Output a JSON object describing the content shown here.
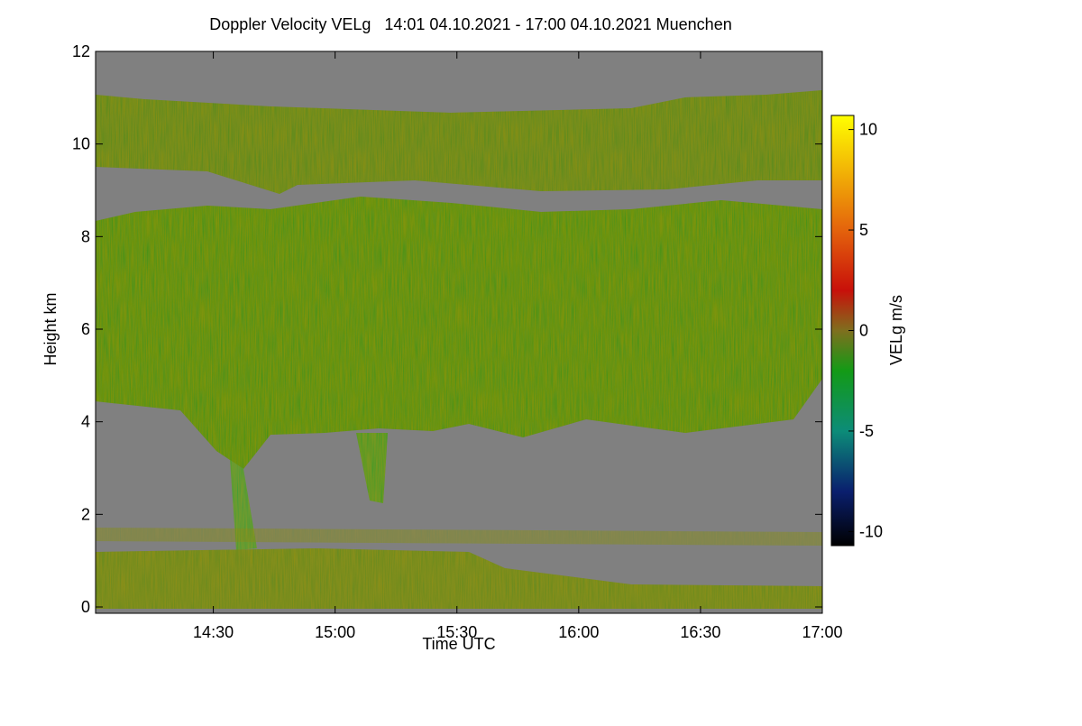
{
  "chart_data": {
    "type": "heatmap",
    "title": "Doppler Velocity VELg   14:01 04.10.2021 - 17:00 04.10.2021 Muenchen",
    "xlabel": "Time UTC",
    "ylabel": "Height km",
    "colorbar_label": "VELg m/s",
    "xlim": [
      14.0167,
      17
    ],
    "xticks": [
      {
        "value": 14.5,
        "label": "14:30"
      },
      {
        "value": 15,
        "label": "15:00"
      },
      {
        "value": 15.5,
        "label": "15:30"
      },
      {
        "value": 16,
        "label": "16:00"
      },
      {
        "value": 16.5,
        "label": "16:30"
      },
      {
        "value": 17,
        "label": "17:00"
      }
    ],
    "ylim": [
      0,
      12
    ],
    "yticks": [
      0,
      2,
      4,
      6,
      8,
      10,
      12
    ],
    "zlim": [
      -10.7,
      10.7
    ],
    "zticks": [
      -10,
      -5,
      0,
      5,
      10
    ],
    "colormap": [
      [
        -10.7,
        "#000000"
      ],
      [
        -8,
        "#0a1f6e"
      ],
      [
        -5,
        "#0c8c78"
      ],
      [
        -2,
        "#139a16"
      ],
      [
        0,
        "#7f6f1e"
      ],
      [
        2,
        "#c8100a"
      ],
      [
        5,
        "#e4630c"
      ],
      [
        10.7,
        "#ffff00"
      ]
    ]
  }
}
